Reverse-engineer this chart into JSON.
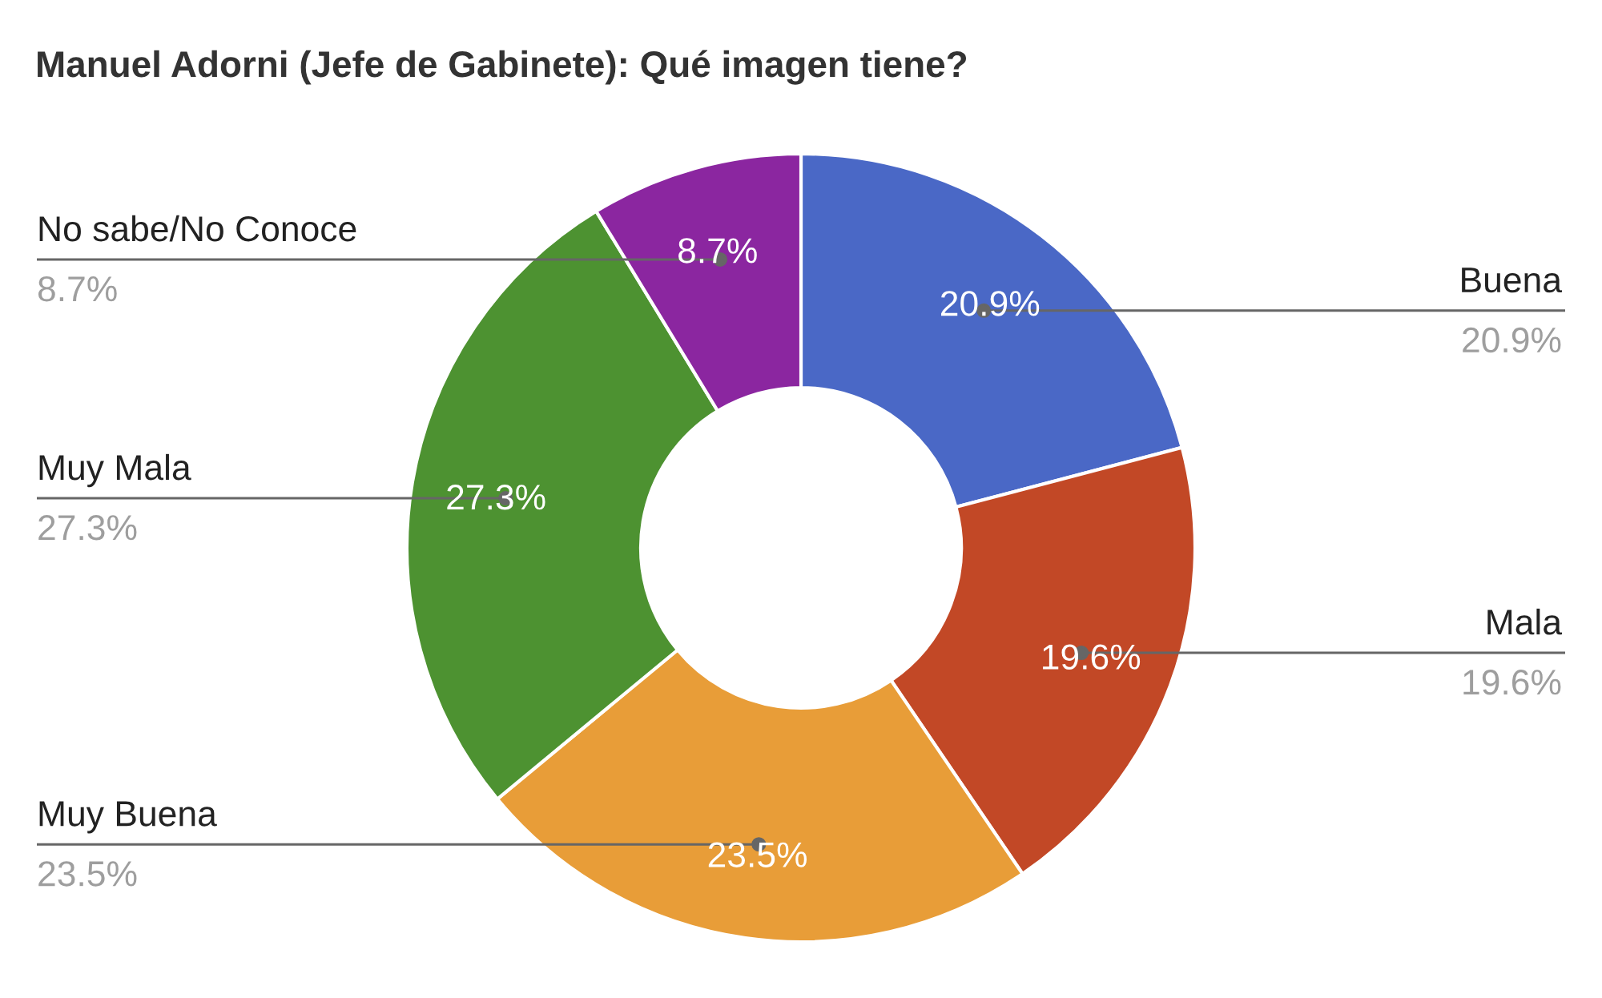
{
  "chart_data": {
    "type": "donut",
    "title": "Manuel Adorni (Jefe de Gabinete): Qué imagen tiene?",
    "categories": [
      "Buena",
      "Mala",
      "Muy Buena",
      "Muy Mala",
      "No sabe/No Conoce"
    ],
    "values": [
      20.9,
      19.6,
      23.5,
      27.3,
      8.7
    ],
    "colors": [
      "#4a68c6",
      "#c24826",
      "#e89d38",
      "#4d9231",
      "#8b26a0"
    ],
    "value_labels": [
      "20.9%",
      "19.6%",
      "23.5%",
      "27.3%",
      "8.7%"
    ]
  }
}
